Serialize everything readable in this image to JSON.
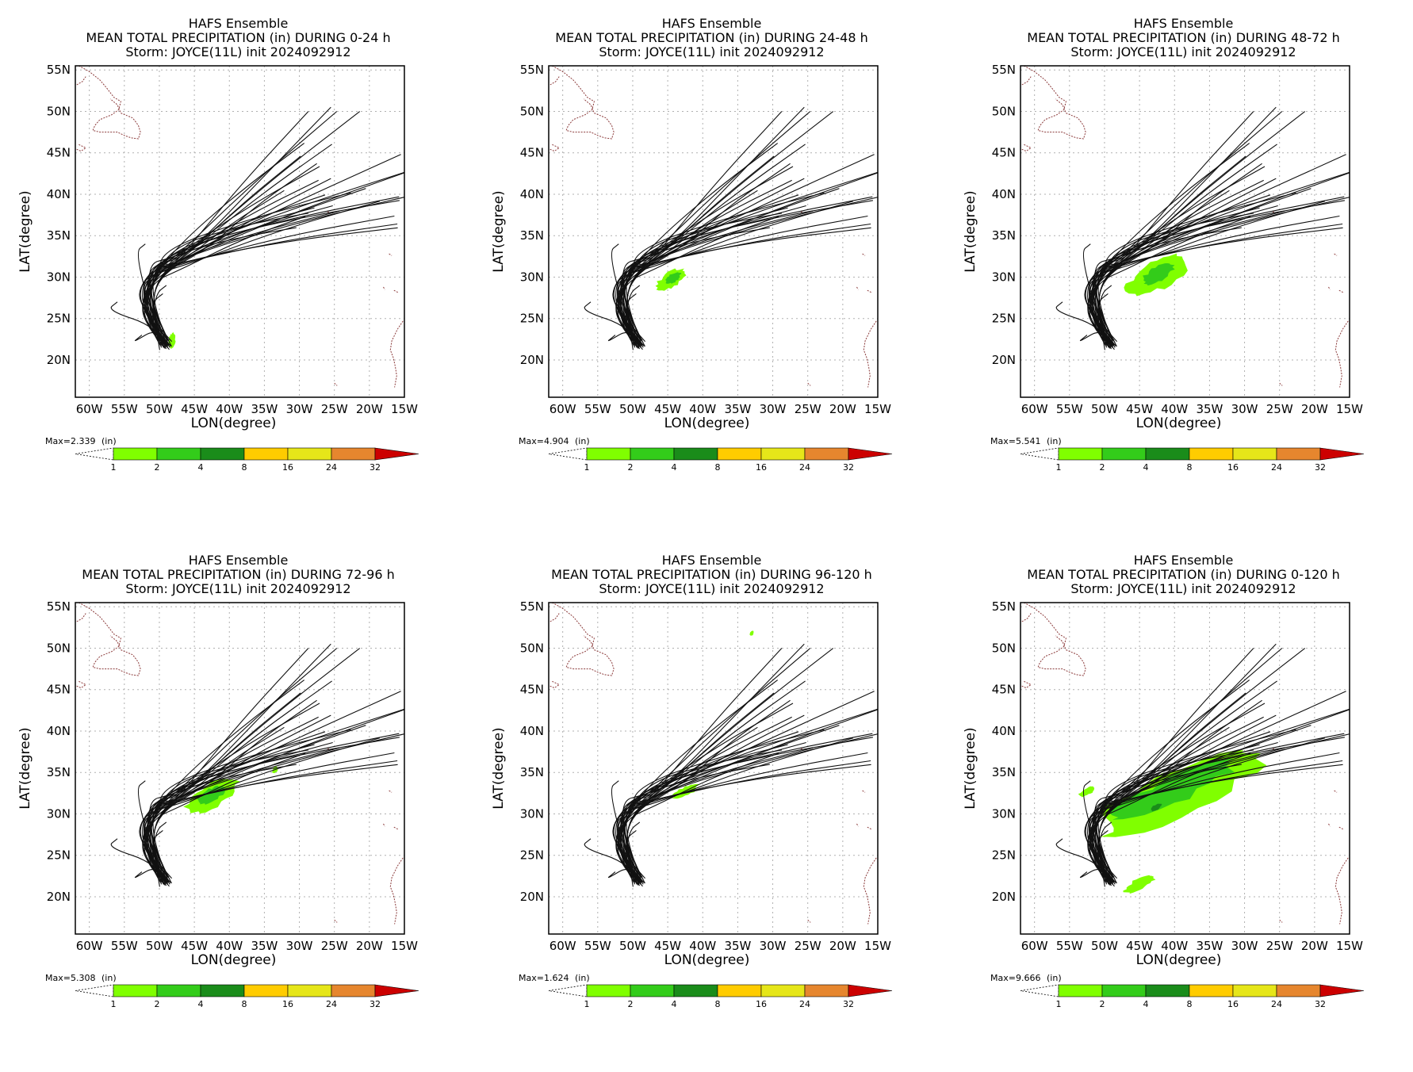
{
  "figure": {
    "lat_ticks": [
      "55N",
      "50N",
      "45N",
      "40N",
      "35N",
      "30N",
      "25N",
      "20N"
    ],
    "lon_ticks": [
      "60W",
      "55W",
      "50W",
      "45W",
      "40W",
      "35W",
      "30W",
      "25W",
      "20W",
      "15W"
    ],
    "xlabel": "LON(degree)",
    "ylabel": "LAT(degree)",
    "units_label": "(in)",
    "colorbar_levels": [
      "1",
      "2",
      "4",
      "8",
      "16",
      "24",
      "32"
    ],
    "colorbar_colors": [
      "#80ff00",
      "#33cc1a",
      "#1a8c1a",
      "#ffcc00",
      "#e6e619",
      "#e6862e",
      "#cc0000"
    ]
  },
  "panels": [
    {
      "title1": "HAFS Ensemble",
      "title2": "MEAN TOTAL PRECIPITATION (in) DURING  0-24 h",
      "title3": "Storm: JOYCE(11L) init 2024092912",
      "max": "Max=2.339"
    },
    {
      "title1": "HAFS Ensemble",
      "title2": "MEAN TOTAL PRECIPITATION (in) DURING 24-48 h",
      "title3": "Storm: JOYCE(11L) init 2024092912",
      "max": "Max=4.904"
    },
    {
      "title1": "HAFS Ensemble",
      "title2": "MEAN TOTAL PRECIPITATION (in) DURING 48-72 h",
      "title3": "Storm: JOYCE(11L) init 2024092912",
      "max": "Max=5.541"
    },
    {
      "title1": "HAFS Ensemble",
      "title2": "MEAN TOTAL PRECIPITATION (in) DURING 72-96 h",
      "title3": "Storm: JOYCE(11L) init 2024092912",
      "max": "Max=5.308"
    },
    {
      "title1": "HAFS Ensemble",
      "title2": "MEAN TOTAL PRECIPITATION (in) DURING 96-120 h",
      "title3": "Storm: JOYCE(11L) init 2024092912",
      "max": "Max=1.624"
    },
    {
      "title1": "HAFS Ensemble",
      "title2": "MEAN TOTAL PRECIPITATION (in) DURING 0-120 h",
      "title3": "Storm: JOYCE(11L) init 2024092912",
      "max": "Max=9.666"
    }
  ],
  "chart_data": {
    "type": "map",
    "x_range_lon": [
      -62,
      -15
    ],
    "y_range_lat": [
      15.5,
      55.5
    ],
    "grid": true,
    "track_endpoints": [
      [
        -25.5,
        50.5
      ],
      [
        -15.5,
        44.8
      ],
      [
        -20.5,
        40.7
      ],
      [
        -25.5,
        41.9
      ],
      [
        -27.5,
        43.7
      ]
    ],
    "precip_blobs": [
      [
        {
          "lon": -48.2,
          "lat": 22.3,
          "rlon": 0.5,
          "rlat": 1.0,
          "level": 1
        }
      ],
      [
        {
          "lon": -44.5,
          "lat": 29.7,
          "rlon": 2.2,
          "rlat": 1.1,
          "level": 1
        },
        {
          "lon": -44.2,
          "lat": 29.9,
          "rlon": 1.1,
          "rlat": 0.6,
          "level": 2
        }
      ],
      [
        {
          "lon": -42.5,
          "lat": 30.3,
          "rlon": 4.5,
          "rlat": 2.0,
          "level": 1
        },
        {
          "lon": -42.3,
          "lat": 30.4,
          "rlon": 2.3,
          "rlat": 1.1,
          "level": 2
        }
      ],
      [
        {
          "lon": -42.5,
          "lat": 32.2,
          "rlon": 3.8,
          "rlat": 1.7,
          "level": 1
        },
        {
          "lon": -42.5,
          "lat": 32.3,
          "rlon": 2.0,
          "rlat": 0.9,
          "level": 2
        },
        {
          "lon": -33.5,
          "lat": 35.3,
          "rlon": 0.4,
          "rlat": 0.4,
          "level": 1
        }
      ],
      [
        {
          "lon": -42.5,
          "lat": 32.7,
          "rlon": 2.0,
          "rlat": 0.6,
          "level": 1
        },
        {
          "lon": -33.0,
          "lat": 51.8,
          "rlon": 0.3,
          "rlat": 0.3,
          "level": 1
        }
      ],
      [
        {
          "lon": -39.0,
          "lat": 32.5,
          "rlon": 12.0,
          "rlat": 3.2,
          "level": 1
        },
        {
          "lon": -40.0,
          "lat": 33.0,
          "rlon": 9.0,
          "rlat": 1.8,
          "level": 2
        },
        {
          "lon": -42.6,
          "lat": 30.8,
          "rlon": 0.8,
          "rlat": 0.4,
          "level": 3
        },
        {
          "lon": -45.0,
          "lat": 21.5,
          "rlon": 2.2,
          "rlat": 0.8,
          "level": 1
        },
        {
          "lon": -52.5,
          "lat": 32.7,
          "rlon": 1.2,
          "rlat": 0.5,
          "level": 1
        }
      ]
    ]
  }
}
